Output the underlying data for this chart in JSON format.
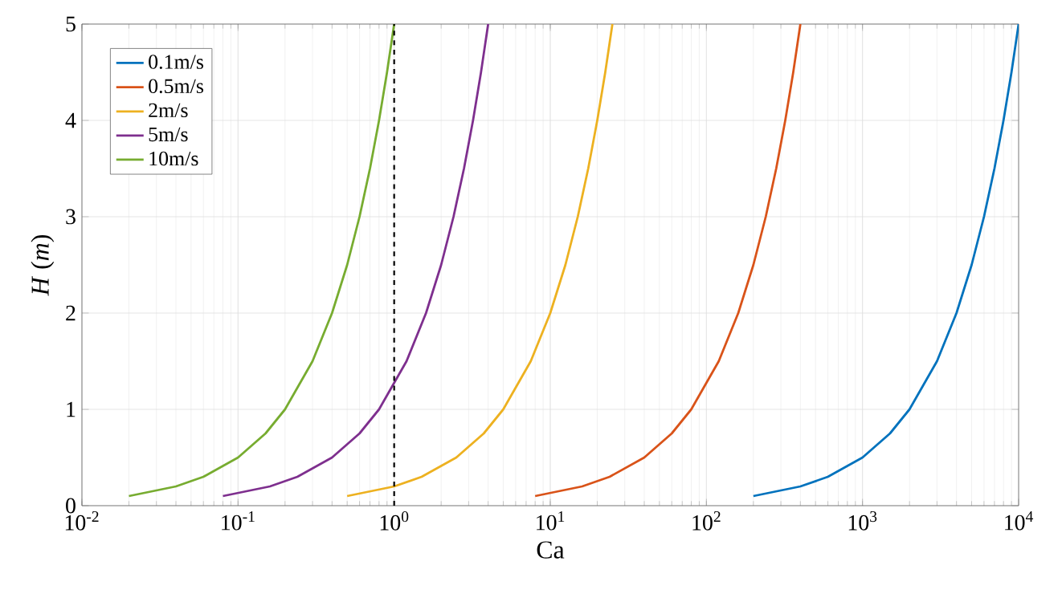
{
  "chart_data": {
    "type": "line",
    "xlabel": "Ca",
    "ylabel": "*H* (*m*)",
    "log": "x",
    "grid": true,
    "legend": "top left",
    "marker": "none",
    "line_style": "solid",
    "xlim": [
      0.01,
      10000
    ],
    "ylim": [
      0,
      5
    ],
    "xticks": [
      {
        "value": 0.01,
        "label": "10$^{-2}$"
      },
      {
        "value": 0.1,
        "label": "10$^{-1}$"
      },
      {
        "value": 1,
        "label": "10$^{0}$"
      },
      {
        "value": 10,
        "label": "10$^{1}$"
      },
      {
        "value": 100,
        "label": "10$^{2}$"
      },
      {
        "value": 1000,
        "label": "10$^{3}$"
      },
      {
        "value": 10000,
        "label": "10$^{4}$"
      }
    ],
    "yticks": [
      0,
      1,
      2,
      3,
      4,
      5
    ],
    "series": [
      {
        "name": "0.1m/s",
        "color": "#0072bd",
        "x": [
          200,
          400,
          600,
          1000,
          1500,
          2000,
          3000,
          4000,
          5000,
          6000,
          7000,
          8000,
          9000,
          10000
        ],
        "values": [
          0.1,
          0.2,
          0.3,
          0.5,
          0.75,
          1,
          1.5,
          2,
          2.5,
          3,
          3.5,
          4,
          4.5,
          5
        ]
      },
      {
        "name": "0.5m/s",
        "color": "#d95319",
        "x": [
          8,
          16,
          24,
          40,
          60,
          80,
          120,
          160,
          200,
          240,
          280,
          320,
          360,
          400
        ],
        "values": [
          0.1,
          0.2,
          0.3,
          0.5,
          0.75,
          1,
          1.5,
          2,
          2.5,
          3,
          3.5,
          4,
          4.5,
          5
        ]
      },
      {
        "name": "2m/s",
        "color": "#edb120",
        "x": [
          0.5,
          1,
          1.5,
          2.5,
          3.75,
          5,
          7.5,
          10,
          12.5,
          15,
          17.5,
          20,
          22.5,
          25
        ],
        "values": [
          0.1,
          0.2,
          0.3,
          0.5,
          0.75,
          1,
          1.5,
          2,
          2.5,
          3,
          3.5,
          4,
          4.5,
          5
        ]
      },
      {
        "name": "5m/s",
        "color": "#7e2f8e",
        "x": [
          0.08,
          0.16,
          0.24,
          0.4,
          0.6,
          0.8,
          1.2,
          1.6,
          2,
          2.4,
          2.8,
          3.2,
          3.6,
          4
        ],
        "values": [
          0.1,
          0.2,
          0.3,
          0.5,
          0.75,
          1,
          1.5,
          2,
          2.5,
          3,
          3.5,
          4,
          4.5,
          5
        ]
      },
      {
        "name": "10m/s",
        "color": "#77ac30",
        "x": [
          0.02,
          0.04,
          0.06,
          0.1,
          0.15,
          0.2,
          0.3,
          0.4,
          0.5,
          0.6,
          0.7,
          0.8,
          0.9,
          1
        ],
        "values": [
          0.1,
          0.2,
          0.3,
          0.5,
          0.75,
          1,
          1.5,
          2,
          2.5,
          3,
          3.5,
          4,
          4.5,
          5
        ]
      }
    ],
    "ref_lines": [
      {
        "axis": "x",
        "value": 1,
        "color": "#000000",
        "line_style": "dashed"
      }
    ]
  }
}
